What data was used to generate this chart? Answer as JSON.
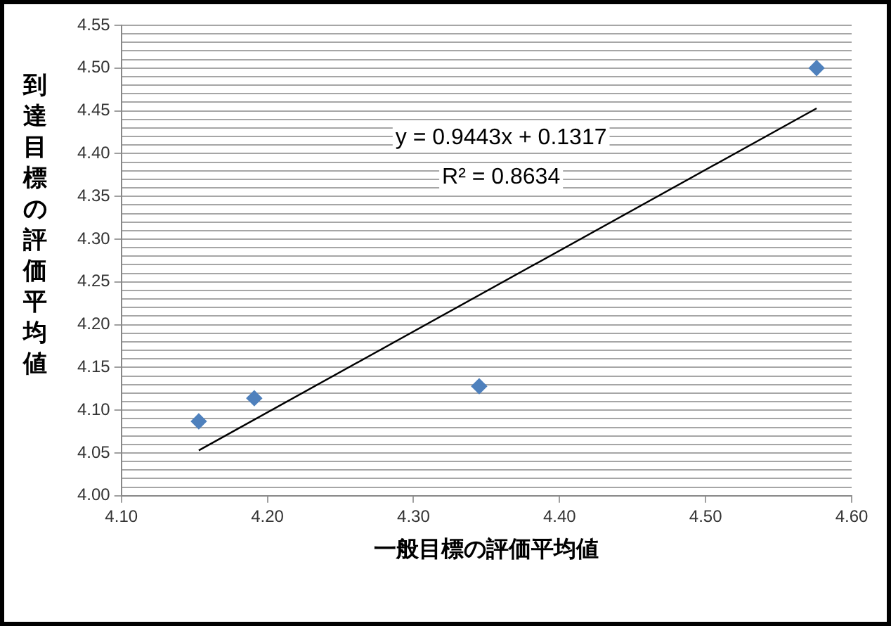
{
  "chart_data": {
    "type": "scatter",
    "xlabel": "一般目標の評価平均値",
    "ylabel": "到達目標の評価平均値",
    "xlim": [
      4.1,
      4.6
    ],
    "xticks": [
      {
        "value": 4.1,
        "label": "4.10"
      },
      {
        "value": 4.2,
        "label": "4.20"
      },
      {
        "value": 4.3,
        "label": "4.30"
      },
      {
        "value": 4.4,
        "label": "4.40"
      },
      {
        "value": 4.5,
        "label": "4.50"
      },
      {
        "value": 4.6,
        "label": "4.60"
      }
    ],
    "ylim": [
      4.0,
      4.55
    ],
    "yticks": [
      {
        "value": 4.0,
        "label": "4.00"
      },
      {
        "value": 4.01,
        "label": null
      },
      {
        "value": 4.02,
        "label": null
      },
      {
        "value": 4.03,
        "label": null
      },
      {
        "value": 4.04,
        "label": null
      },
      {
        "value": 4.05,
        "label": "4.05"
      },
      {
        "value": 4.06,
        "label": null
      },
      {
        "value": 4.07,
        "label": null
      },
      {
        "value": 4.08,
        "label": null
      },
      {
        "value": 4.09,
        "label": null
      },
      {
        "value": 4.1,
        "label": "4.10"
      },
      {
        "value": 4.11,
        "label": null
      },
      {
        "value": 4.12,
        "label": null
      },
      {
        "value": 4.13,
        "label": null
      },
      {
        "value": 4.14,
        "label": null
      },
      {
        "value": 4.15,
        "label": "4.15"
      },
      {
        "value": 4.16,
        "label": null
      },
      {
        "value": 4.17,
        "label": null
      },
      {
        "value": 4.18,
        "label": null
      },
      {
        "value": 4.19,
        "label": null
      },
      {
        "value": 4.2,
        "label": "4.20"
      },
      {
        "value": 4.21,
        "label": null
      },
      {
        "value": 4.22,
        "label": null
      },
      {
        "value": 4.23,
        "label": null
      },
      {
        "value": 4.24,
        "label": null
      },
      {
        "value": 4.25,
        "label": "4.25"
      },
      {
        "value": 4.26,
        "label": null
      },
      {
        "value": 4.27,
        "label": null
      },
      {
        "value": 4.28,
        "label": null
      },
      {
        "value": 4.29,
        "label": null
      },
      {
        "value": 4.3,
        "label": "4.30"
      },
      {
        "value": 4.31,
        "label": null
      },
      {
        "value": 4.32,
        "label": null
      },
      {
        "value": 4.33,
        "label": null
      },
      {
        "value": 4.34,
        "label": null
      },
      {
        "value": 4.35,
        "label": "4.35"
      },
      {
        "value": 4.36,
        "label": null
      },
      {
        "value": 4.37,
        "label": null
      },
      {
        "value": 4.38,
        "label": null
      },
      {
        "value": 4.39,
        "label": null
      },
      {
        "value": 4.4,
        "label": "4.40"
      },
      {
        "value": 4.41,
        "label": null
      },
      {
        "value": 4.42,
        "label": null
      },
      {
        "value": 4.43,
        "label": null
      },
      {
        "value": 4.44,
        "label": null
      },
      {
        "value": 4.45,
        "label": "4.45"
      },
      {
        "value": 4.46,
        "label": null
      },
      {
        "value": 4.47,
        "label": null
      },
      {
        "value": 4.48,
        "label": null
      },
      {
        "value": 4.49,
        "label": null
      },
      {
        "value": 4.5,
        "label": "4.50"
      },
      {
        "value": 4.51,
        "label": null
      },
      {
        "value": 4.52,
        "label": null
      },
      {
        "value": 4.53,
        "label": null
      },
      {
        "value": 4.54,
        "label": null
      },
      {
        "value": 4.55,
        "label": "4.55"
      }
    ],
    "grid": "y",
    "legend": false,
    "series": [
      {
        "type": "scatter",
        "color": "#4f81bd",
        "marker": "diamond",
        "x": [
          4.153,
          4.191,
          4.345,
          4.576
        ],
        "values": [
          4.087,
          4.114,
          4.128,
          4.5
        ]
      },
      {
        "type": "line",
        "color": "#000000",
        "marker": "none",
        "x": [
          4.153,
          4.576
        ],
        "values": [
          4.053,
          4.453
        ]
      }
    ],
    "annotations": [
      "y = 0.9443x + 0.1317",
      "R² = 0.8634"
    ]
  }
}
